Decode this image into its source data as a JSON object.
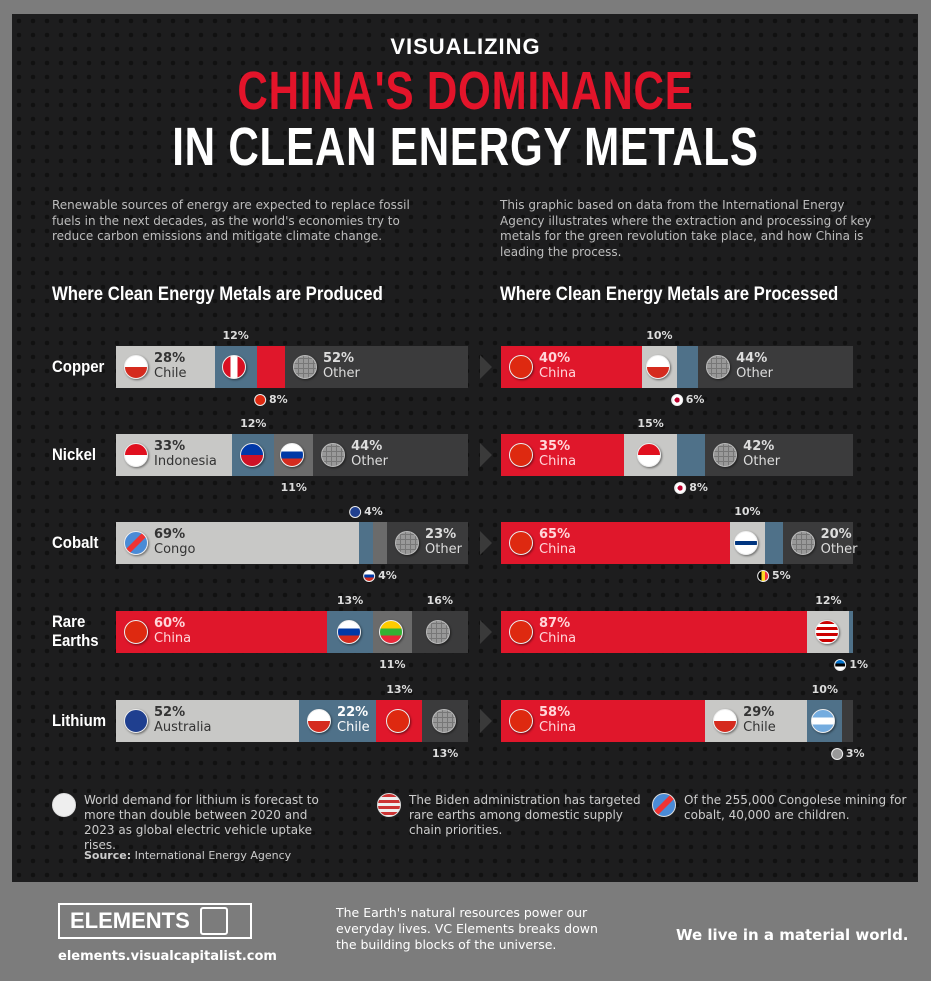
{
  "header": {
    "kicker": "VISUALIZING",
    "title_red": "CHINA'S DOMINANCE",
    "title_white": "IN CLEAN ENERGY METALS"
  },
  "intro": {
    "left": "Renewable sources of energy are expected to replace fossil fuels in the next decades, as the world's economies try to reduce carbon emissions and mitigate climate change.",
    "right": "This graphic based on data from the International Energy Agency illustrates where the extraction and processing of key metals for the green revolution take place, and how China is leading the process."
  },
  "colors": {
    "light": "#c8c8c6",
    "blue": "#4f7189",
    "red": "#e0172b",
    "mid": "#6b6b6b",
    "dark": "#3b3b3c"
  },
  "chart_data": [
    {
      "type": "bar",
      "stacked": true,
      "orientation": "horizontal",
      "title": "Where Clean Energy Metals are Produced",
      "unit": "%",
      "categories": [
        "Copper",
        "Nickel",
        "Cobalt",
        "Rare Earths",
        "Lithium"
      ],
      "rows": [
        {
          "metal": "Copper",
          "segments": [
            {
              "country": "Chile",
              "value": 28,
              "style": "light"
            },
            {
              "country": "Peru",
              "value": 12,
              "style": "blue",
              "label": "above"
            },
            {
              "country": "China",
              "value": 8,
              "style": "red",
              "label": "below"
            },
            {
              "country": "Other",
              "value": 52,
              "style": "dark"
            }
          ]
        },
        {
          "metal": "Nickel",
          "segments": [
            {
              "country": "Indonesia",
              "value": 33,
              "style": "light"
            },
            {
              "country": "Philippines",
              "value": 12,
              "style": "blue",
              "label": "above"
            },
            {
              "country": "Russia",
              "value": 11,
              "style": "mid",
              "label": "below"
            },
            {
              "country": "Other",
              "value": 44,
              "style": "dark"
            }
          ]
        },
        {
          "metal": "Cobalt",
          "segments": [
            {
              "country": "Congo",
              "value": 69,
              "style": "light"
            },
            {
              "country": "Australia",
              "value": 4,
              "style": "blue",
              "label": "above"
            },
            {
              "country": "Russia",
              "value": 4,
              "style": "mid",
              "label": "below"
            },
            {
              "country": "Other",
              "value": 23,
              "style": "dark"
            }
          ]
        },
        {
          "metal": "Rare Earths",
          "segments": [
            {
              "country": "China",
              "value": 60,
              "style": "red"
            },
            {
              "country": "Russia",
              "value": 13,
              "style": "blue",
              "label": "above"
            },
            {
              "country": "Myanmar",
              "value": 11,
              "style": "mid",
              "label": "below"
            },
            {
              "country": "Other",
              "value": 16,
              "style": "dark",
              "label": "above"
            }
          ]
        },
        {
          "metal": "Lithium",
          "segments": [
            {
              "country": "Australia",
              "value": 52,
              "style": "light"
            },
            {
              "country": "Chile",
              "value": 22,
              "style": "blue"
            },
            {
              "country": "China",
              "value": 13,
              "style": "red",
              "label": "above"
            },
            {
              "country": "Other",
              "value": 13,
              "style": "dark",
              "label": "below"
            }
          ]
        }
      ]
    },
    {
      "type": "bar",
      "stacked": true,
      "orientation": "horizontal",
      "title": "Where Clean Energy Metals are Processed",
      "unit": "%",
      "categories": [
        "Copper",
        "Nickel",
        "Cobalt",
        "Rare Earths",
        "Lithium"
      ],
      "rows": [
        {
          "metal": "Copper",
          "segments": [
            {
              "country": "China",
              "value": 40,
              "style": "red"
            },
            {
              "country": "Chile",
              "value": 10,
              "style": "light",
              "label": "above"
            },
            {
              "country": "Japan",
              "value": 6,
              "style": "blue",
              "label": "below"
            },
            {
              "country": "Other",
              "value": 44,
              "style": "dark"
            }
          ]
        },
        {
          "metal": "Nickel",
          "segments": [
            {
              "country": "China",
              "value": 35,
              "style": "red"
            },
            {
              "country": "Indonesia",
              "value": 15,
              "style": "light",
              "label": "above"
            },
            {
              "country": "Japan",
              "value": 8,
              "style": "blue",
              "label": "below"
            },
            {
              "country": "Other",
              "value": 42,
              "style": "dark"
            }
          ]
        },
        {
          "metal": "Cobalt",
          "segments": [
            {
              "country": "China",
              "value": 65,
              "style": "red"
            },
            {
              "country": "Finland",
              "value": 10,
              "style": "light",
              "label": "above"
            },
            {
              "country": "Belgium",
              "value": 5,
              "style": "blue",
              "label": "below"
            },
            {
              "country": "Other",
              "value": 20,
              "style": "dark"
            }
          ]
        },
        {
          "metal": "Rare Earths",
          "segments": [
            {
              "country": "China",
              "value": 87,
              "style": "red"
            },
            {
              "country": "Malaysia",
              "value": 12,
              "style": "light",
              "label": "above"
            },
            {
              "country": "Estonia",
              "value": 1,
              "style": "blue",
              "label": "below"
            }
          ]
        },
        {
          "metal": "Lithium",
          "segments": [
            {
              "country": "China",
              "value": 58,
              "style": "red"
            },
            {
              "country": "Chile",
              "value": 29,
              "style": "light"
            },
            {
              "country": "Argentina",
              "value": 10,
              "style": "blue",
              "label": "above"
            },
            {
              "country": "Other",
              "value": 3,
              "style": "dark",
              "label": "below"
            }
          ]
        }
      ]
    }
  ],
  "notes": [
    {
      "icon": "lithium-battery-icon",
      "text": "World demand for lithium is forecast to more than double between 2020 and 2023 as global electric vehicle uptake rises."
    },
    {
      "icon": "usa-flag-icon",
      "text": "The Biden administration has targeted rare earths among domestic supply chain priorities."
    },
    {
      "icon": "congo-flag-icon",
      "text": "Of the 255,000 Congolese mining for cobalt, 40,000 are children."
    }
  ],
  "source": {
    "label": "Source:",
    "value": "International Energy Agency"
  },
  "footer": {
    "logo": "ELEMENTS",
    "url": "elements.visualcapitalist.com",
    "blurb": "The Earth's natural resources power our everyday lives. VC Elements breaks down the building blocks of the universe.",
    "tagline_a": "We live in a ",
    "tagline_b": "material world."
  }
}
